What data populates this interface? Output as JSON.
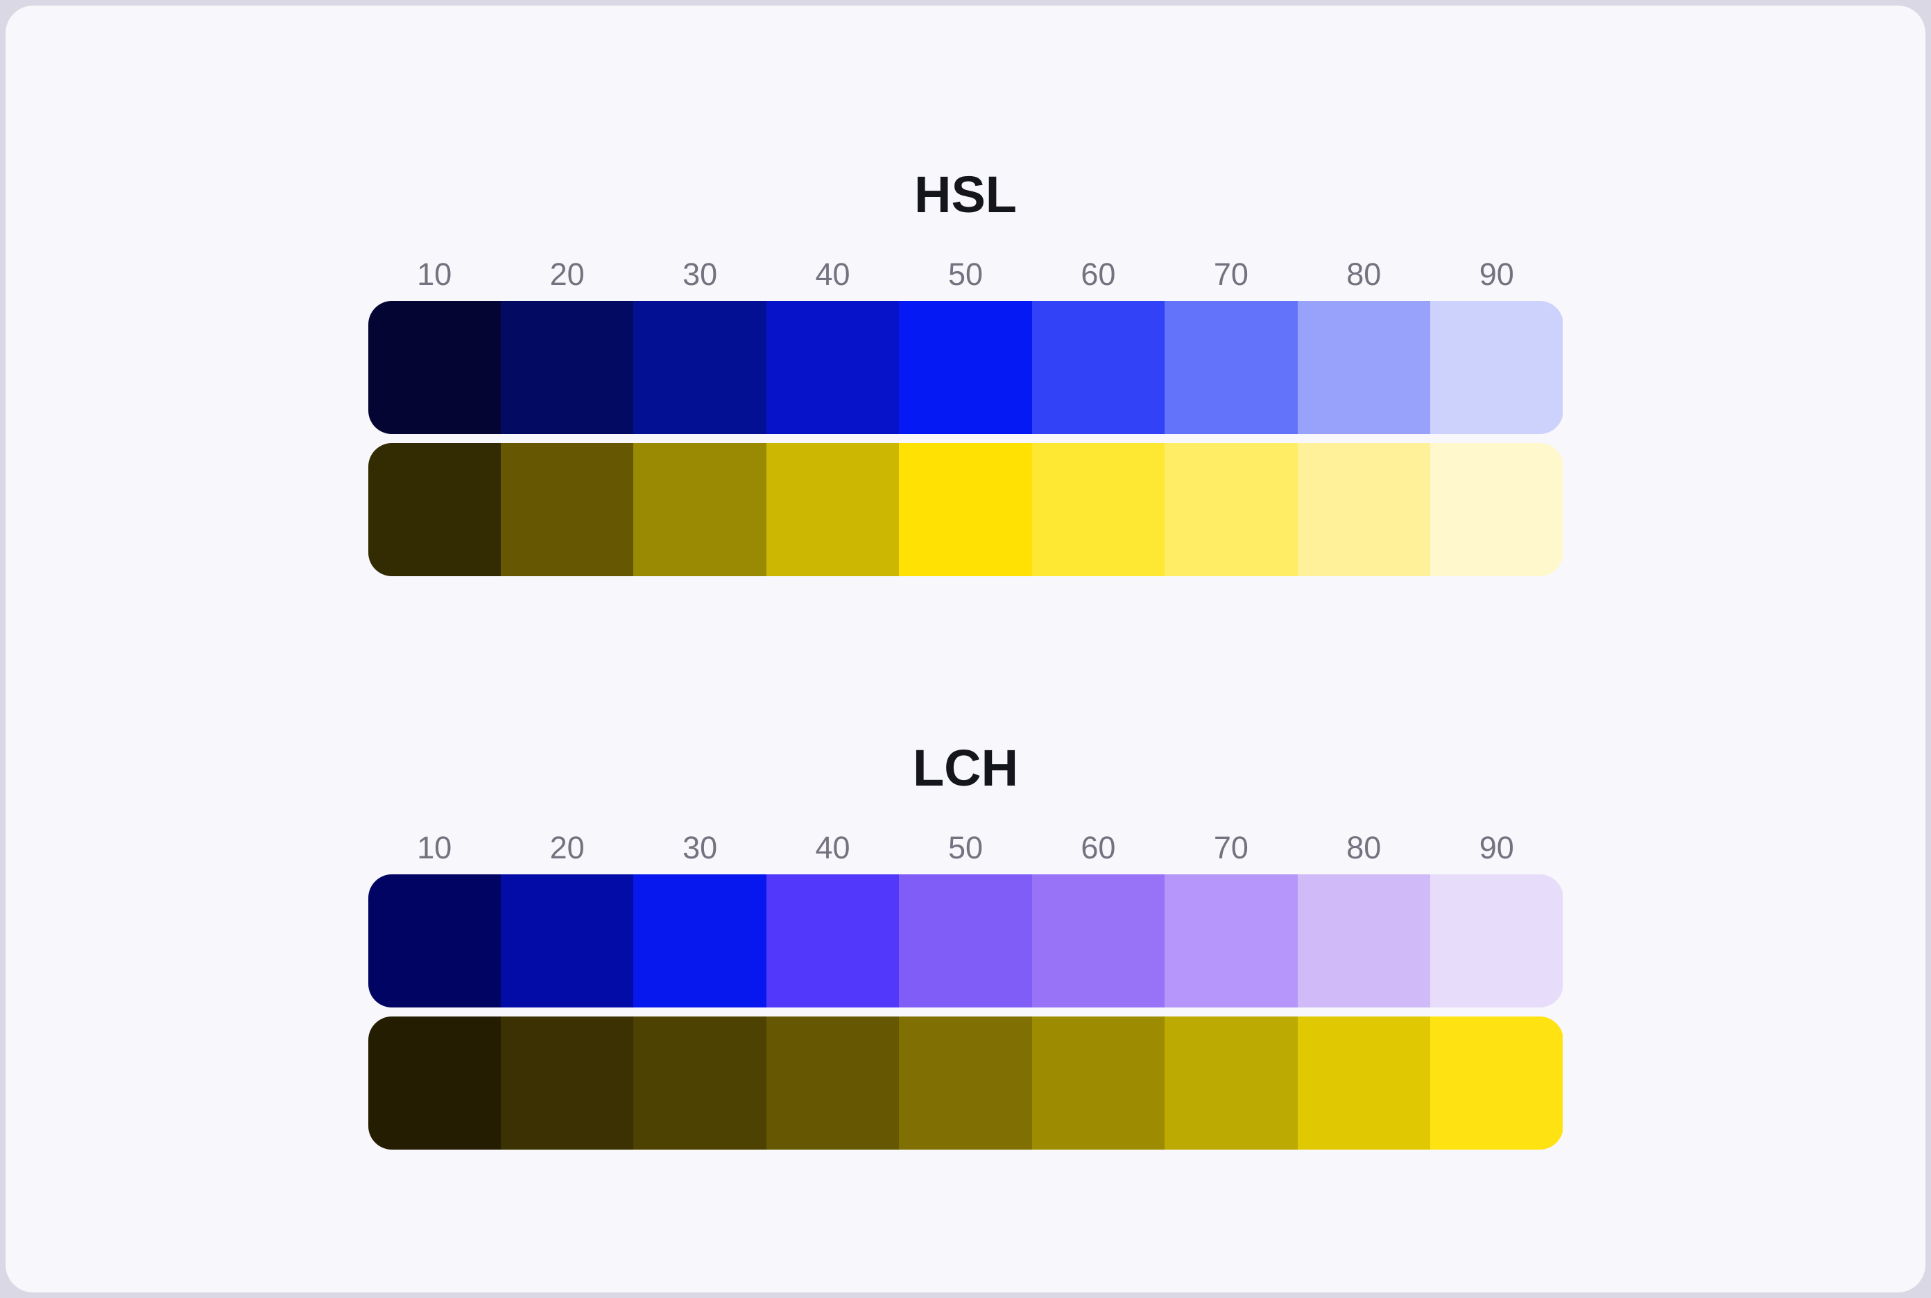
{
  "page": {
    "background": "#D9D8E4",
    "card_background": "#F8F8FC",
    "title_color": "#15151C",
    "label_color": "#73727F"
  },
  "chart_data": [
    {
      "type": "heatmap",
      "title": "HSL",
      "columns": [
        "10",
        "20",
        "30",
        "40",
        "50",
        "60",
        "70",
        "80",
        "90"
      ],
      "rows": [
        {
          "name": "hsl-blue-scale",
          "colors": [
            "#050533",
            "#030A61",
            "#031094",
            "#0613C9",
            "#0519F4",
            "#3142F7",
            "#6373FA",
            "#98A2FA",
            "#CDD2FC"
          ]
        },
        {
          "name": "hsl-yellow-scale",
          "colors": [
            "#332C03",
            "#665803",
            "#998903",
            "#CCB802",
            "#FFE203",
            "#FFE833",
            "#FFED66",
            "#FFF199",
            "#FFF8CC"
          ]
        }
      ]
    },
    {
      "type": "heatmap",
      "title": "LCH",
      "columns": [
        "10",
        "20",
        "30",
        "40",
        "50",
        "60",
        "70",
        "80",
        "90"
      ],
      "rows": [
        {
          "name": "lch-blue-scale",
          "colors": [
            "#020463",
            "#040CA8",
            "#0718EF",
            "#5138FB",
            "#805DF7",
            "#9873F8",
            "#B696FB",
            "#D0BBF8",
            "#E7DCFA"
          ]
        },
        {
          "name": "lch-yellow-scale",
          "colors": [
            "#241D01",
            "#3B3103",
            "#4D4202",
            "#665702",
            "#807003",
            "#9D8B02",
            "#BCA902",
            "#E0C802",
            "#FFE212"
          ]
        }
      ]
    }
  ]
}
